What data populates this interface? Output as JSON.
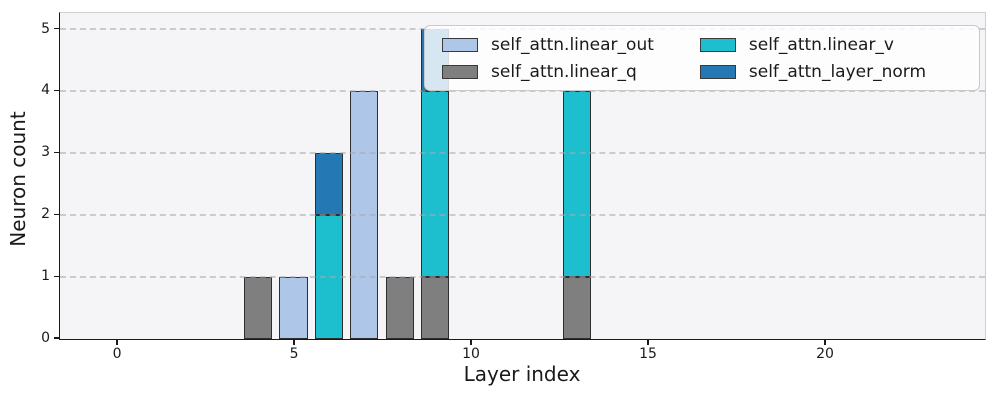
{
  "figure": {
    "background": "#ffffff",
    "plot_background": "#f5f4f6",
    "grid_color": "#aaa8ae",
    "spine_color_primary": "#1a1a1a",
    "spine_color_secondary": "#cfcfcf",
    "text_color": "#1a1a1a"
  },
  "chart_data": {
    "type": "bar",
    "stacked": true,
    "title": "",
    "xlabel": "Layer index",
    "ylabel": "Neuron count",
    "xlim": [
      -1.6,
      24.55
    ],
    "ylim": [
      0,
      5.25
    ],
    "xtick_values": [
      0,
      5,
      10,
      15,
      20
    ],
    "xtick_labels": [
      "0",
      "5",
      "10",
      "15",
      "20"
    ],
    "ytick_values": [
      0,
      1,
      2,
      3,
      4,
      5
    ],
    "ytick_labels": [
      "0",
      "1",
      "2",
      "3",
      "4",
      "5"
    ],
    "bar_width": 0.8,
    "grid": "horizontal dashed",
    "legend_position": "upper-right",
    "legend_columns": 2,
    "series": [
      {
        "name": "self_attn.linear_out",
        "color": "#aec7e8",
        "points": [
          {
            "x": 5,
            "y": 1
          },
          {
            "x": 7,
            "y": 4
          }
        ]
      },
      {
        "name": "self_attn.linear_q",
        "color": "#7f7f7f",
        "points": [
          {
            "x": 4,
            "y": 1
          },
          {
            "x": 8,
            "y": 1
          },
          {
            "x": 9,
            "y": 1
          },
          {
            "x": 13,
            "y": 1
          }
        ]
      },
      {
        "name": "self_attn.linear_v",
        "color": "#1dbecd",
        "points": [
          {
            "x": 6,
            "y": 2
          },
          {
            "x": 9,
            "y": 3
          },
          {
            "x": 13,
            "y": 3
          }
        ]
      },
      {
        "name": "self_attn_layer_norm",
        "color": "#2478b4",
        "points": [
          {
            "x": 6,
            "y": 1
          },
          {
            "x": 9,
            "y": 1
          }
        ]
      }
    ],
    "stack_totals": [
      {
        "x": 4,
        "total": 1
      },
      {
        "x": 5,
        "total": 1
      },
      {
        "x": 6,
        "total": 3
      },
      {
        "x": 7,
        "total": 4
      },
      {
        "x": 8,
        "total": 1
      },
      {
        "x": 9,
        "total": 5
      },
      {
        "x": 13,
        "total": 4
      }
    ]
  }
}
